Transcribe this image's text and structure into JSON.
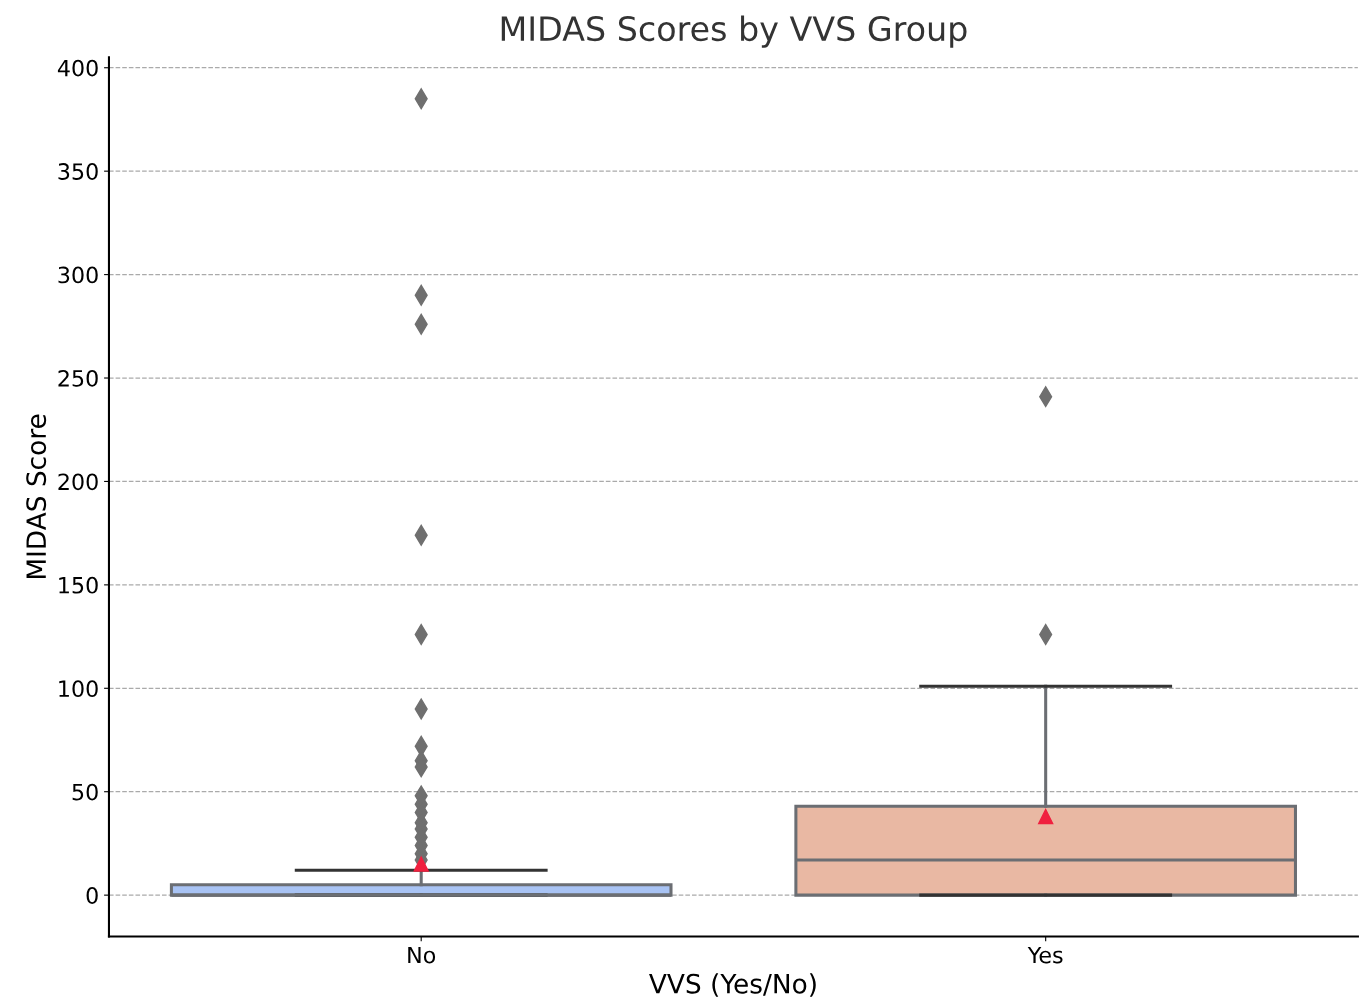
{
  "chart_data": {
    "type": "box",
    "title": "MIDAS Scores by VVS Group",
    "xlabel": "VVS (Yes/No)",
    "ylabel": "MIDAS Score",
    "categories": [
      "No",
      "Yes"
    ],
    "colors": [
      "#a8c3f4",
      "#e9b8a3"
    ],
    "boxes": [
      {
        "low": 0,
        "q1": 0,
        "median": 0,
        "q3": 5,
        "high": 12,
        "mean": 15,
        "outliers": [
          385,
          290,
          276,
          174,
          126,
          90,
          72,
          65,
          62,
          48,
          44,
          40,
          35,
          32,
          28,
          24,
          20,
          17
        ]
      },
      {
        "low": 0,
        "q1": 0,
        "median": 17,
        "q3": 43,
        "high": 101,
        "mean": 38,
        "outliers": [
          241,
          126
        ]
      }
    ],
    "ylim": [
      -20,
      405
    ],
    "yticks": [
      0,
      50,
      100,
      150,
      200,
      250,
      300,
      350,
      400
    ],
    "grid": "y",
    "marker": "diamond"
  }
}
